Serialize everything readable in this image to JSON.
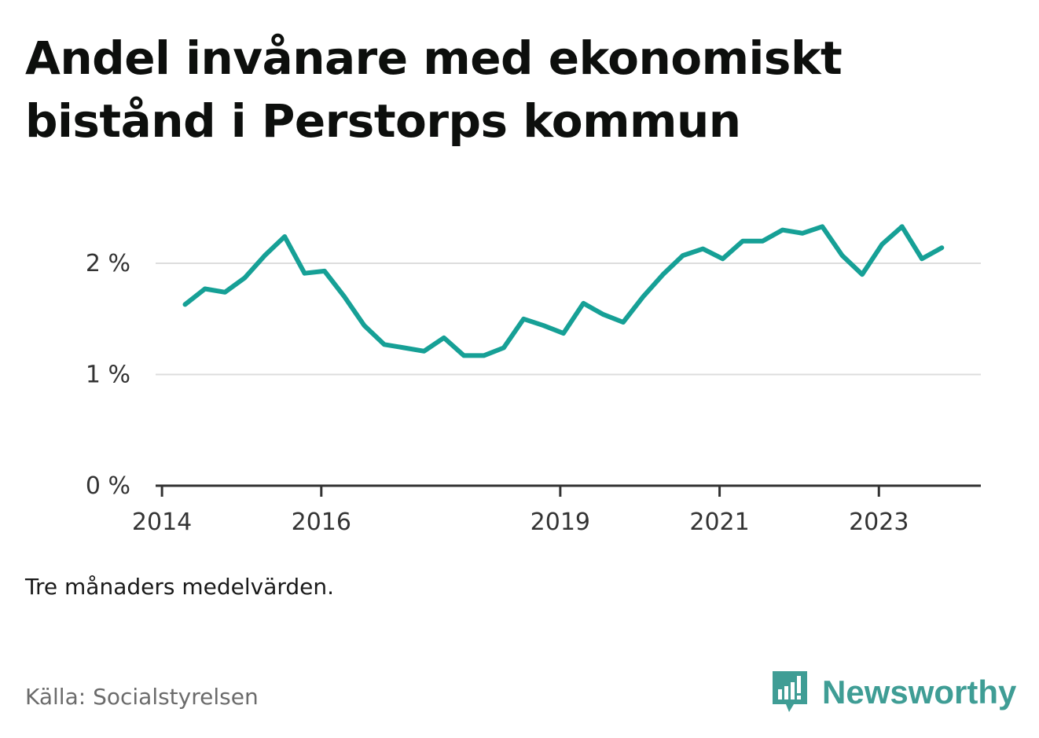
{
  "title": "Andel invånare med ekonomiskt bistånd i Perstorps kommun",
  "note": "Tre månaders medelvärden.",
  "source": "Källa: Socialstyrelsen",
  "brand": "Newsworthy",
  "colors": {
    "line": "#16a096",
    "grid": "#dddddd",
    "axis": "#333333",
    "brand": "#3f9d95"
  },
  "chart_data": {
    "type": "line",
    "title": "Andel invånare med ekonomiskt bistånd i Perstorps kommun",
    "xlabel": "",
    "ylabel": "",
    "ylim": [
      0,
      2.5
    ],
    "xlim": [
      2013.92,
      2024.28
    ],
    "grid": true,
    "y_ticks": [
      {
        "value": 0,
        "label": "0 %"
      },
      {
        "value": 1,
        "label": "1 %"
      },
      {
        "value": 2,
        "label": "2 %"
      }
    ],
    "x_ticks": [
      {
        "value": 2014,
        "label": "2014"
      },
      {
        "value": 2016,
        "label": "2016"
      },
      {
        "value": 2019,
        "label": "2019"
      },
      {
        "value": 2021,
        "label": "2021"
      },
      {
        "value": 2023,
        "label": "2023"
      }
    ],
    "series": [
      {
        "x": [
          2014.29,
          2014.54,
          2014.79,
          2015.04,
          2015.29,
          2015.54,
          2015.79,
          2016.04,
          2016.29,
          2016.54,
          2016.79,
          2017.04,
          2017.29,
          2017.54,
          2017.79,
          2018.04,
          2018.29,
          2018.54,
          2018.79,
          2019.04,
          2019.29,
          2019.54,
          2019.79,
          2020.04,
          2020.29,
          2020.54,
          2020.79,
          2021.04,
          2021.29,
          2021.54,
          2021.79,
          2022.04,
          2022.29,
          2022.54,
          2022.79,
          2023.04,
          2023.29,
          2023.54,
          2023.79
        ],
        "values": [
          1.63,
          1.77,
          1.74,
          1.87,
          2.07,
          2.24,
          1.91,
          1.93,
          1.7,
          1.44,
          1.27,
          1.24,
          1.21,
          1.33,
          1.17,
          1.17,
          1.24,
          1.5,
          1.44,
          1.37,
          1.64,
          1.54,
          1.47,
          1.7,
          1.9,
          2.07,
          2.13,
          2.04,
          2.2,
          2.2,
          2.3,
          2.27,
          2.33,
          2.07,
          1.9,
          2.17,
          2.33,
          2.04,
          2.14
        ]
      }
    ]
  }
}
